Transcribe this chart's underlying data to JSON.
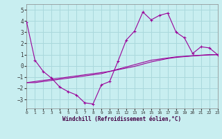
{
  "xlabel": "Windchill (Refroidissement éolien,°C)",
  "background_color": "#c8eef0",
  "grid_color": "#aad8dc",
  "line_color": "#990099",
  "hours": [
    0,
    1,
    2,
    3,
    4,
    5,
    6,
    7,
    8,
    9,
    10,
    11,
    12,
    13,
    14,
    15,
    16,
    17,
    18,
    19,
    20,
    21,
    22,
    23
  ],
  "main_values": [
    3.9,
    0.5,
    -0.5,
    -1.1,
    -1.9,
    -2.3,
    -2.6,
    -3.3,
    -3.4,
    -1.7,
    -1.4,
    0.4,
    2.3,
    3.1,
    4.8,
    4.1,
    4.5,
    4.7,
    3.0,
    2.5,
    1.1,
    1.7,
    1.6,
    1.0
  ],
  "line2_values": [
    -1.5,
    -1.5,
    -1.4,
    -1.3,
    -1.2,
    -1.1,
    -1.0,
    -0.9,
    -0.8,
    -0.7,
    -0.5,
    -0.3,
    -0.1,
    0.1,
    0.3,
    0.5,
    0.6,
    0.7,
    0.8,
    0.85,
    0.9,
    0.95,
    1.0,
    1.0
  ],
  "line3_values": [
    -1.5,
    -1.4,
    -1.3,
    -1.2,
    -1.1,
    -1.0,
    -0.9,
    -0.8,
    -0.7,
    -0.6,
    -0.5,
    -0.35,
    -0.2,
    -0.05,
    0.15,
    0.35,
    0.5,
    0.65,
    0.75,
    0.82,
    0.88,
    0.93,
    0.97,
    1.0
  ],
  "xlim": [
    0,
    23
  ],
  "ylim": [
    -3.8,
    5.5
  ],
  "yticks": [
    -3,
    -2,
    -1,
    0,
    1,
    2,
    3,
    4,
    5
  ],
  "xticks": [
    0,
    1,
    2,
    3,
    4,
    5,
    6,
    7,
    8,
    9,
    10,
    11,
    12,
    13,
    14,
    15,
    16,
    17,
    18,
    19,
    20,
    21,
    22,
    23
  ]
}
